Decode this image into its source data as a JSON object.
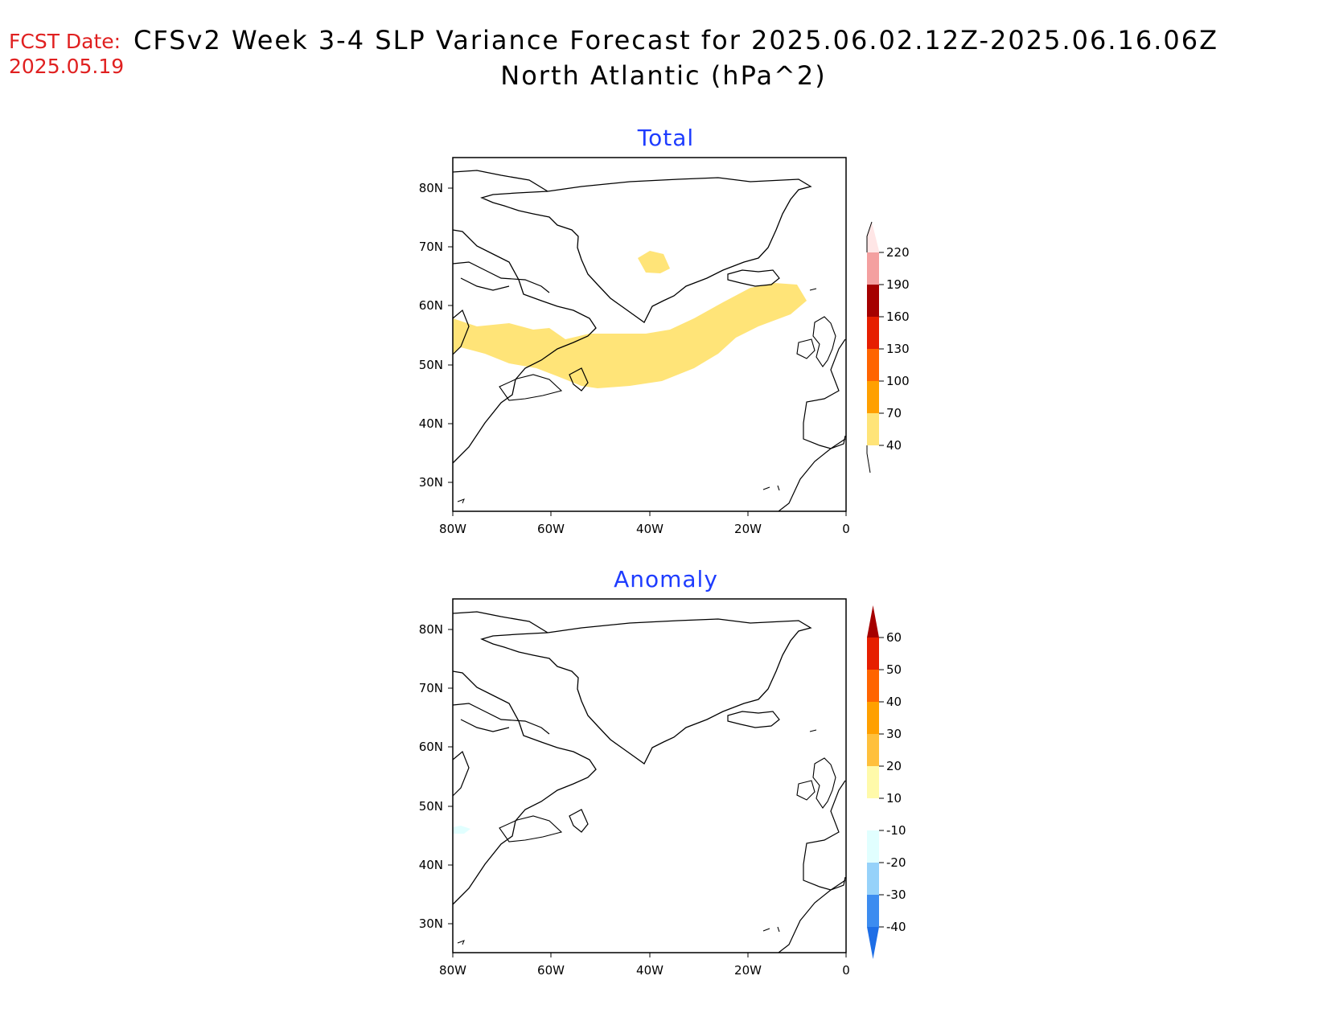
{
  "header": {
    "fcst_label": "FCST Date:",
    "fcst_date": "2025.05.19",
    "title_line1": "CFSv2 Week 3-4 SLP Variance Forecast for 2025.06.02.12Z-2025.06.16.06Z",
    "title_line2": "North Atlantic (hPa^2)"
  },
  "map_axes": {
    "lat_labels": [
      "80N",
      "70N",
      "60N",
      "50N",
      "40N",
      "30N"
    ],
    "lon_labels": [
      "80W",
      "60W",
      "40W",
      "20W",
      "0"
    ]
  },
  "panels": [
    {
      "id": "total",
      "title": "Total",
      "colorbar": {
        "labels": [
          "40",
          "70",
          "100",
          "130",
          "160",
          "190",
          "220"
        ],
        "colors": [
          "#ffe478",
          "#ffa000",
          "#ff6400",
          "#e61e00",
          "#a50000",
          "#f4a0a0",
          "#ffe6e6"
        ],
        "shaded_feature": "variance 40-70 band"
      }
    },
    {
      "id": "anomaly",
      "title": "Anomaly",
      "colorbar": {
        "labels": [
          "-40",
          "-30",
          "-20",
          "-10",
          "10",
          "20",
          "30",
          "40",
          "50",
          "60"
        ],
        "colors": [
          "#1e6ee6",
          "#3c8cf0",
          "#96d2fa",
          "#e1ffff",
          "#ffffff",
          "#fffaaa",
          "#ffc03c",
          "#ffa000",
          "#ff6400",
          "#e61e00",
          "#a50000"
        ]
      }
    }
  ]
}
